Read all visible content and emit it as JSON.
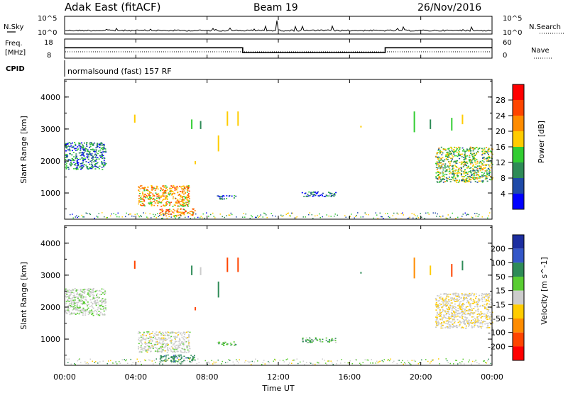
{
  "header": {
    "station": "Adak East (fitACF)",
    "beam": "Beam 19",
    "date": "26/Nov/2016"
  },
  "noise_panel": {
    "left_label": "N.Sky",
    "right_label": "N.Search",
    "left_ticks": [
      "10^5",
      "10^0"
    ],
    "right_ticks": [
      "10^5",
      "10^0"
    ]
  },
  "freq_panel": {
    "left_label_1": "Freq.",
    "left_label_2": "[MHz]",
    "right_label": "Nave",
    "left_ticks": [
      "18",
      "8"
    ],
    "right_ticks": [
      "60",
      "0"
    ]
  },
  "cpid_panel": {
    "label": "CPID",
    "text": "normalsound (fast) 157 RF"
  },
  "power_panel": {
    "ylabel": "Slant Range [km]",
    "yticks": [
      "4000",
      "3000",
      "2000",
      "1000"
    ],
    "colorbar_label": "Power [dB]",
    "colorbar_ticks": [
      "28",
      "24",
      "20",
      "16",
      "12",
      "8",
      "4"
    ],
    "colorbar_colors": [
      "#ff0000",
      "#ff4500",
      "#ff8c00",
      "#ffcc00",
      "#32cd32",
      "#2e8b57",
      "#1f4aa8",
      "#0000ff"
    ]
  },
  "velocity_panel": {
    "ylabel": "Slant Range [km]",
    "yticks": [
      "4000",
      "3000",
      "2000",
      "1000"
    ],
    "colorbar_label": "Velocity [m s^-1]",
    "colorbar_ticks": [
      "200",
      "100",
      "50",
      "15",
      "-15",
      "-50",
      "-100",
      "-200"
    ],
    "colorbar_colors": [
      "#1c2ea0",
      "#3457c8",
      "#2e8b57",
      "#5acd32",
      "#cccccc",
      "#ffcc00",
      "#ff8c00",
      "#ff4500",
      "#ff0000"
    ]
  },
  "xaxis": {
    "label": "Time UT",
    "ticks": [
      "00:00",
      "04:00",
      "08:00",
      "12:00",
      "16:00",
      "20:00",
      "00:00"
    ]
  },
  "chart_data": {
    "type": "heatmap",
    "x_range_hours": [
      0,
      24
    ],
    "y_range_km": [
      180,
      4550
    ],
    "frequency_segments_mhz": [
      {
        "start": 0,
        "end": 10,
        "value": 13.5
      },
      {
        "start": 10,
        "end": 18,
        "value": 10.5
      },
      {
        "start": 18,
        "end": 24,
        "value": 13.5
      }
    ],
    "scatter_regions": [
      {
        "name": "early-e",
        "t0": 0.0,
        "t1": 2.3,
        "r0": 1750,
        "r1": 2600,
        "power_db": 7,
        "velocity": 8
      },
      {
        "name": "morning-core",
        "t0": 4.1,
        "t1": 7.0,
        "r0": 600,
        "r1": 1250,
        "power_db": 18,
        "velocity": 0
      },
      {
        "name": "morning-low",
        "t0": 5.3,
        "t1": 7.3,
        "r0": 300,
        "r1": 520,
        "power_db": 20,
        "velocity": 60
      },
      {
        "name": "midday",
        "t0": 8.5,
        "t1": 9.6,
        "r0": 820,
        "r1": 940,
        "power_db": 5,
        "velocity": 30
      },
      {
        "name": "afternoon",
        "t0": 13.3,
        "t1": 15.2,
        "r0": 900,
        "r1": 1060,
        "power_db": 7,
        "velocity": 25
      },
      {
        "name": "evening",
        "t0": 20.8,
        "t1": 24.0,
        "r0": 1350,
        "r1": 2450,
        "power_db": 12,
        "velocity": -8
      }
    ]
  }
}
